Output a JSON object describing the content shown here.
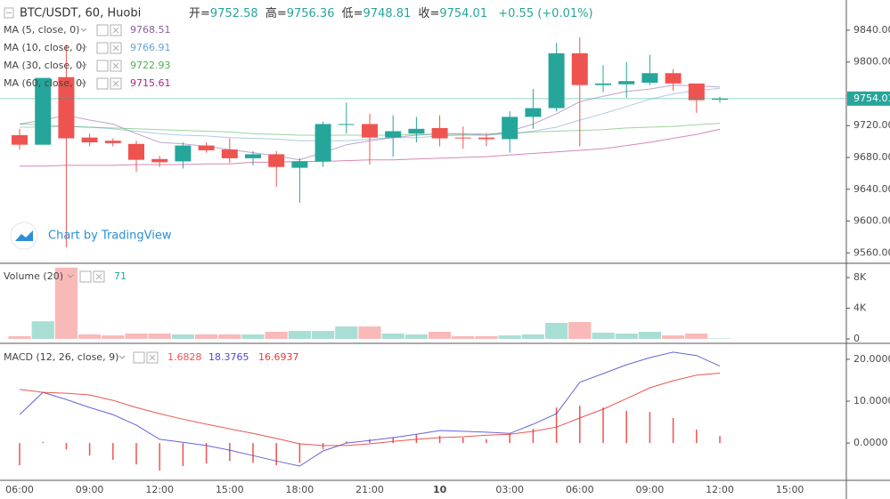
{
  "chart_data": [
    {
      "type": "candlestick",
      "title": "BTC/USDT, 60, Huobi",
      "ohlc_labels": [
        "开=",
        "高=",
        "低=",
        "收="
      ],
      "change": "+0.55 (+0.01%)",
      "watermark": "Chart by TradingView",
      "up_color": "#26a69a",
      "down_color": "#ef5350",
      "open": [
        9708,
        9696,
        9781,
        9705,
        9701,
        9697,
        9678,
        9675,
        9695,
        9690,
        9679,
        9684,
        9667,
        9675,
        9721,
        9722,
        9705,
        9710,
        9717,
        9705,
        9705,
        9703,
        9731,
        9742,
        9811,
        9771,
        9772,
        9774,
        9786,
        9773,
        9752.58,
        null,
        null,
        null
      ],
      "high": [
        9716,
        9780,
        9822,
        9710,
        9704,
        9701,
        9682,
        9699,
        9699,
        9704,
        9688,
        9688,
        9679,
        9725,
        9749,
        9735,
        9733,
        9731,
        9733,
        9719,
        9710,
        9738,
        9766,
        9824,
        9831,
        9796,
        9800,
        9809,
        9791,
        9773,
        9756.36,
        null,
        null,
        null
      ],
      "low": [
        9690,
        9696,
        9567,
        9694,
        9694,
        9662,
        9668,
        9666,
        9686,
        9673,
        9670,
        9643,
        9623,
        9668,
        9710,
        9671,
        9681,
        9699,
        9694,
        9691,
        9694,
        9686,
        9716,
        9738,
        9694,
        9762,
        9755,
        9771,
        9764,
        9736,
        9748.81,
        null,
        null,
        null
      ],
      "close": [
        9696,
        9780,
        9704,
        9699,
        9698,
        9677,
        9674,
        9695,
        9689,
        9679,
        9684,
        9668,
        9675,
        9722,
        9722,
        9705,
        9713,
        9716,
        9704,
        9704,
        9703,
        9731,
        9742,
        9811,
        9771,
        9773,
        9776,
        9786,
        9773,
        9752,
        9754.01,
        null,
        null,
        null
      ],
      "series": [
        {
          "name": "MA (5, close, 0)",
          "color": "#8e5a9e",
          "values": [
            9722,
            9727,
            9733,
            9727,
            9722,
            9710,
            9699,
            9697,
            9694,
            9690,
            9686,
            9682,
            9677,
            9686,
            9696,
            9701,
            9705,
            9708,
            9710,
            9710,
            9708,
            9713,
            9722,
            9735,
            9750,
            9757,
            9763,
            9766,
            9771,
            9770,
            9768.51,
            null,
            null,
            null
          ]
        },
        {
          "name": "MA (10, close, 0)",
          "color": "#6a9fd4",
          "values": [
            9718,
            9718,
            9719,
            9718,
            9716,
            9713,
            9710,
            9708,
            9707,
            9705,
            9704,
            9703,
            9701,
            9701,
            9701,
            9703,
            9705,
            9705,
            9707,
            9708,
            9708,
            9710,
            9713,
            9718,
            9727,
            9735,
            9744,
            9753,
            9760,
            9764,
            9766.91,
            null,
            null,
            null
          ]
        },
        {
          "name": "MA (30, close, 0)",
          "color": "#4caf50",
          "values": [
            9722,
            9721,
            9719,
            9718,
            9717,
            9716,
            9715,
            9714,
            9713,
            9712,
            9710,
            9709,
            9708,
            9708,
            9708,
            9708,
            9708,
            9709,
            9709,
            9709,
            9710,
            9710,
            9712,
            9713,
            9714,
            9715,
            9717,
            9718,
            9719,
            9721,
            9722.93,
            null,
            null,
            null
          ]
        },
        {
          "name": "MA (60, close, 0)",
          "color": "#b5227f",
          "values": [
            9669,
            9669,
            9670,
            9670,
            9670,
            9671,
            9671,
            9671,
            9672,
            9672,
            9674,
            9674,
            9675,
            9675,
            9676,
            9677,
            9677,
            9678,
            9679,
            9680,
            9681,
            9683,
            9685,
            9687,
            9689,
            9691,
            9695,
            9699,
            9704,
            9709,
            9715.61,
            null,
            null,
            null
          ]
        }
      ],
      "ylim": [
        9548,
        9878
      ],
      "yticks": [
        {
          "value": 9560,
          "label": "9560.00"
        },
        {
          "value": 9600,
          "label": "9600.00"
        },
        {
          "value": 9640,
          "label": "9640.00"
        },
        {
          "value": 9680,
          "label": "9680.00"
        },
        {
          "value": 9720,
          "label": "9720.00"
        },
        {
          "value": 9800,
          "label": "9800.00"
        },
        {
          "value": 9840,
          "label": "9840.00"
        }
      ]
    },
    {
      "type": "bar",
      "title": "Volume (20)",
      "up_color": "#a9ded5",
      "down_color": "#f9b9b8",
      "values": [
        350,
        2300,
        9300,
        580,
        460,
        700,
        700,
        580,
        580,
        580,
        580,
        930,
        1040,
        1040,
        1620,
        1620,
        700,
        580,
        930,
        350,
        350,
        460,
        580,
        2090,
        2200,
        810,
        700,
        930,
        460,
        700,
        71,
        null,
        null,
        null
      ],
      "ylim": [
        -460,
        9740
      ],
      "yticks": [
        0,
        {
          "value": 4000,
          "label": "4K"
        },
        {
          "value": 8000,
          "label": "8K"
        }
      ]
    },
    {
      "type": "macd",
      "title": "MACD (12, 26, close, 9)",
      "histogram": {
        "color": "#ef5350",
        "values": [
          -5.3,
          0.3,
          -1.5,
          -3.0,
          -4.0,
          -5.1,
          -6.6,
          -5.5,
          -4.9,
          -4.3,
          -4.7,
          -5.3,
          -4.7,
          -1.5,
          0.4,
          0.9,
          1.3,
          2.1,
          1.7,
          1.3,
          0.9,
          2.3,
          3.4,
          8.5,
          8.9,
          8.5,
          7.7,
          7.4,
          6.0,
          3.2,
          1.6828,
          null,
          null,
          null
        ]
      },
      "macd": {
        "color": "#4a4ad0",
        "values": [
          6.8,
          12.1,
          10.4,
          8.5,
          6.8,
          4.3,
          0.9,
          0.2,
          -0.6,
          -1.7,
          -3.0,
          -4.3,
          -5.5,
          -1.9,
          0,
          0.6,
          1.3,
          2.1,
          3.0,
          2.8,
          2.6,
          2.3,
          4.5,
          7.0,
          14.5,
          16.6,
          18.7,
          20.4,
          21.7,
          20.9,
          18.3765,
          null,
          null,
          null
        ]
      },
      "signal": {
        "color": "#e53935",
        "values": [
          12.8,
          12.1,
          11.9,
          11.5,
          10.2,
          8.5,
          7.0,
          5.7,
          4.5,
          3.4,
          2.3,
          1.1,
          -0.2,
          -0.6,
          -0.6,
          -0.2,
          0.4,
          0.9,
          1.3,
          1.5,
          1.9,
          2.1,
          2.8,
          3.8,
          6.0,
          8.1,
          10.6,
          13.2,
          14.9,
          16.2,
          16.6937,
          null,
          null,
          null
        ]
      },
      "ylim": [
        -8.9,
        23.6
      ],
      "yticks": [
        {
          "value": 0,
          "label": "0.0000"
        },
        {
          "value": 10,
          "label": "10.0000"
        },
        {
          "value": 20,
          "label": "20.0000"
        }
      ],
      "categories": [
        "06:00",
        null,
        null,
        "09:00",
        null,
        null,
        "12:00",
        null,
        null,
        "15:00",
        null,
        null,
        "18:00",
        null,
        null,
        "21:00",
        null,
        null,
        "10",
        null,
        null,
        "03:00",
        null,
        null,
        "06:00",
        null,
        null,
        "09:00",
        null,
        null,
        "12:00",
        null,
        null,
        "15:00"
      ]
    }
  ]
}
